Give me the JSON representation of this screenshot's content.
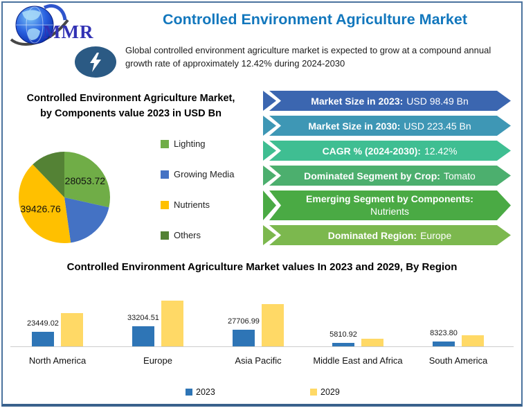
{
  "header": {
    "logo_text": "MMR",
    "title": "Controlled Environment Agriculture Market",
    "description": "Global controlled environment agriculture market is expected to grow at a compound annual growth rate of approximately 12.42% during 2024-2030"
  },
  "colors": {
    "title_blue": "#1277bd",
    "logo_navy": "#3232b4",
    "bolt_circle_blue": "#2b5a84",
    "frame_border": "#4a729d"
  },
  "banners": [
    {
      "label": "Market Size in 2023:",
      "value": "USD 98.49 Bn",
      "color": "#3b66b0"
    },
    {
      "label": "Market Size in 2030:",
      "value": "USD 223.45 Bn",
      "color": "#3e97b5"
    },
    {
      "label": "CAGR % (2024-2030):",
      "value": "12.42%",
      "color": "#3fbe92"
    },
    {
      "label": "Dominated Segment by Crop:",
      "value": "Tomato",
      "color": "#4caf6e"
    },
    {
      "label": "Emerging Segment by Components:",
      "value": "Nutrients",
      "color": "#4aaa44"
    },
    {
      "label": "Dominated Region:",
      "value": "Europe",
      "color": "#7cb84e"
    }
  ],
  "chart_data": [
    {
      "type": "pie",
      "title": "Controlled Environment Agriculture Market, by Components value 2023 in USD Bn",
      "categories": [
        "Lighting",
        "Growing Media",
        "Nutrients",
        "Others"
      ],
      "values": [
        28053.72,
        19009.52,
        39426.76,
        12000
      ],
      "labeled_values": {
        "Lighting": "28053.72",
        "Nutrients": "39426.76"
      },
      "colors": [
        "#70ad47",
        "#4472c4",
        "#ffc000",
        "#548235"
      ],
      "legend_position": "right",
      "note": "Only Lighting and Nutrients slices carry data labels in the image; Growing Media and Others values are estimated from slice angles."
    },
    {
      "type": "bar",
      "title": "Controlled Environment Agriculture Market values In 2023 and 2029, By Region",
      "categories": [
        "North America",
        "Europe",
        "Asia Pacific",
        "Middle East and Africa",
        "South America"
      ],
      "series": [
        {
          "name": "2023",
          "color": "#2e75b6",
          "values": [
            23449.02,
            33204.51,
            27706.99,
            5810.92,
            8323.8
          ],
          "labels": [
            "23449.02",
            "33204.51",
            "27706.99",
            "5810.92",
            "8323.80"
          ]
        },
        {
          "name": "2029",
          "color": "#ffd966",
          "values": [
            54400,
            74400,
            68800,
            12100,
            18100
          ],
          "estimated": true
        }
      ],
      "ylim": [
        0,
        80000
      ],
      "gridlines": false,
      "legend_position": "bottom",
      "note": "2029 series is unlabeled in the image; values estimated from bar heights."
    }
  ]
}
